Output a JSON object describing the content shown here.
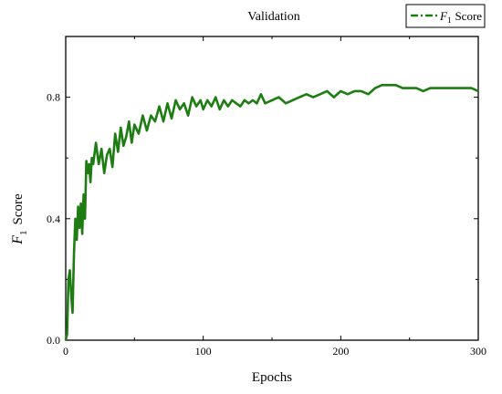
{
  "chart_data": {
    "type": "line",
    "title": "Validation",
    "xlabel": "Epochs",
    "ylabel": {
      "italic": "F",
      "sub": "1",
      "text": "Score"
    },
    "xlim": [
      0,
      300
    ],
    "ylim": [
      0.0,
      1.0
    ],
    "xticks": [
      0,
      100,
      200,
      300
    ],
    "yticks": [
      0.0,
      0.4,
      0.8
    ],
    "xtick_labels": [
      "0",
      "100",
      "200",
      "300"
    ],
    "ytick_labels": [
      "0.0",
      "0.4",
      "0.8"
    ],
    "grid": false,
    "legend": {
      "placement": "top-right",
      "italic": "F",
      "sub": "1",
      "text": "Score",
      "line_style": "dash-dot"
    },
    "series": [
      {
        "name": "F1 Score",
        "color": "#1e7d12",
        "x": [
          0,
          1,
          2,
          3,
          4,
          5,
          6,
          7,
          8,
          9,
          10,
          11,
          12,
          13,
          14,
          15,
          16,
          17,
          18,
          19,
          20,
          22,
          24,
          26,
          28,
          30,
          32,
          34,
          36,
          38,
          40,
          42,
          44,
          46,
          48,
          50,
          53,
          56,
          59,
          62,
          65,
          68,
          71,
          74,
          77,
          80,
          83,
          86,
          89,
          92,
          95,
          98,
          100,
          103,
          106,
          109,
          112,
          115,
          118,
          121,
          124,
          127,
          130,
          133,
          136,
          139,
          142,
          145,
          150,
          155,
          160,
          165,
          170,
          175,
          180,
          185,
          190,
          195,
          200,
          205,
          210,
          215,
          220,
          225,
          230,
          235,
          240,
          245,
          250,
          255,
          260,
          265,
          270,
          275,
          280,
          285,
          290,
          295,
          300
        ],
        "y": [
          0.0,
          0.02,
          0.2,
          0.23,
          0.15,
          0.09,
          0.28,
          0.4,
          0.33,
          0.44,
          0.37,
          0.45,
          0.35,
          0.48,
          0.4,
          0.59,
          0.55,
          0.58,
          0.52,
          0.6,
          0.58,
          0.65,
          0.58,
          0.63,
          0.55,
          0.61,
          0.63,
          0.57,
          0.68,
          0.62,
          0.7,
          0.64,
          0.67,
          0.72,
          0.65,
          0.71,
          0.68,
          0.74,
          0.69,
          0.74,
          0.72,
          0.77,
          0.72,
          0.78,
          0.73,
          0.79,
          0.76,
          0.78,
          0.74,
          0.8,
          0.77,
          0.79,
          0.76,
          0.79,
          0.77,
          0.8,
          0.76,
          0.79,
          0.77,
          0.79,
          0.78,
          0.77,
          0.79,
          0.78,
          0.79,
          0.78,
          0.81,
          0.78,
          0.79,
          0.8,
          0.78,
          0.79,
          0.8,
          0.81,
          0.8,
          0.81,
          0.82,
          0.8,
          0.82,
          0.81,
          0.82,
          0.82,
          0.81,
          0.83,
          0.84,
          0.84,
          0.84,
          0.83,
          0.83,
          0.83,
          0.82,
          0.83,
          0.83,
          0.83,
          0.83,
          0.83,
          0.83,
          0.83,
          0.82
        ]
      }
    ]
  }
}
